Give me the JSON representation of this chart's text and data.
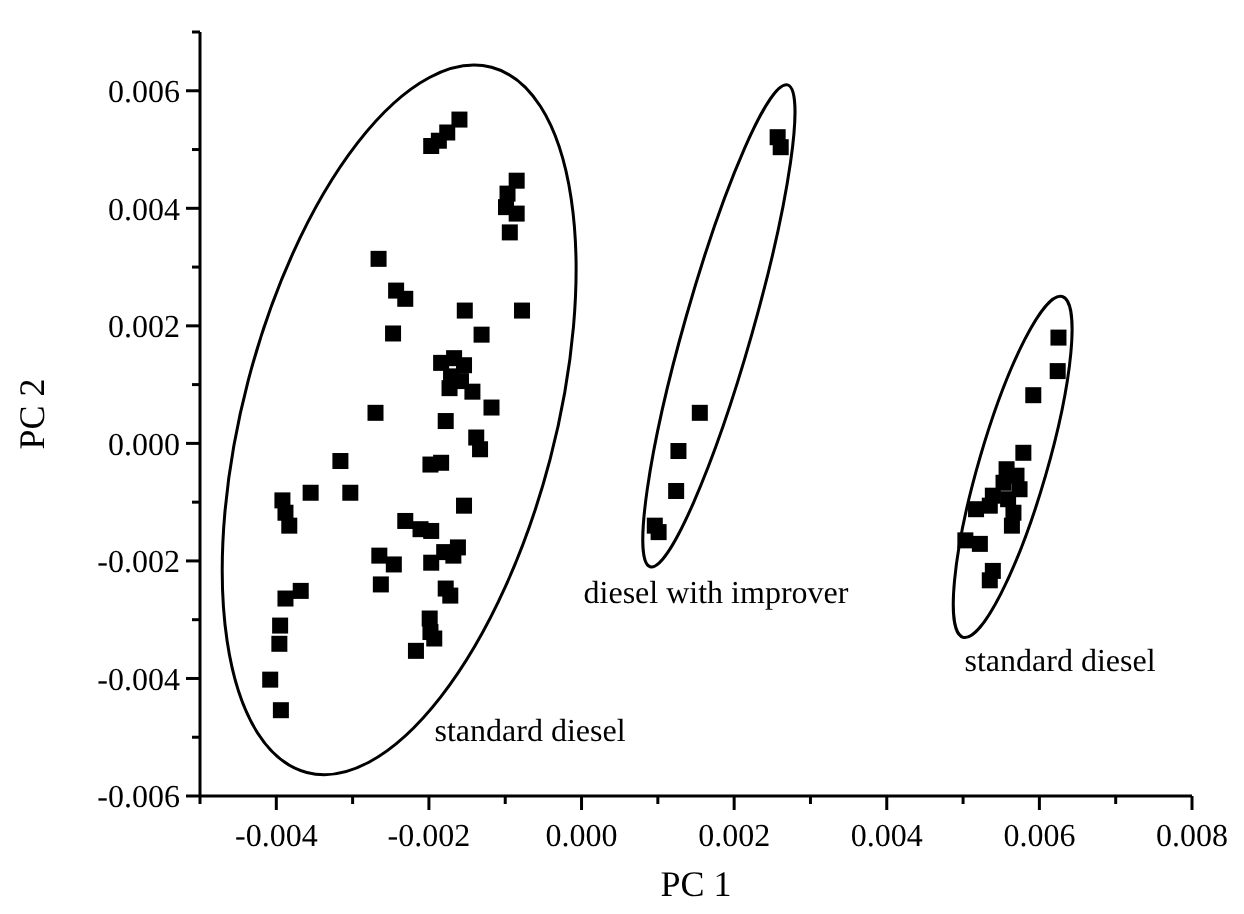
{
  "chart_data": {
    "type": "scatter",
    "xlabel": "PC 1",
    "ylabel": "PC 2",
    "marker": "square",
    "xlim": [
      -0.005,
      0.008
    ],
    "ylim": [
      -0.006,
      0.007
    ],
    "xticks": [
      {
        "value": -0.005,
        "label": null
      },
      {
        "value": -0.004,
        "label": "-0.004"
      },
      {
        "value": -0.003,
        "label": null
      },
      {
        "value": -0.002,
        "label": "-0.002"
      },
      {
        "value": -0.001,
        "label": null
      },
      {
        "value": 0,
        "label": "0.000"
      },
      {
        "value": 0.001,
        "label": null
      },
      {
        "value": 0.002,
        "label": "0.002"
      },
      {
        "value": 0.003,
        "label": null
      },
      {
        "value": 0.004,
        "label": "0.004"
      },
      {
        "value": 0.005,
        "label": null
      },
      {
        "value": 0.006,
        "label": "0.006"
      },
      {
        "value": 0.007,
        "label": null
      },
      {
        "value": 0.008,
        "label": "0.008"
      }
    ],
    "yticks": [
      {
        "value": -0.006,
        "label": "-0.006"
      },
      {
        "value": -0.005,
        "label": null
      },
      {
        "value": -0.004,
        "label": "-0.004"
      },
      {
        "value": -0.003,
        "label": null
      },
      {
        "value": -0.002,
        "label": "-0.002"
      },
      {
        "value": -0.001,
        "label": null
      },
      {
        "value": 0,
        "label": "0.000"
      },
      {
        "value": 0.001,
        "label": null
      },
      {
        "value": 0.002,
        "label": "0.002"
      },
      {
        "value": 0.003,
        "label": null
      },
      {
        "value": 0.004,
        "label": "0.004"
      },
      {
        "value": 0.005,
        "label": null
      },
      {
        "value": 0.006,
        "label": "0.006"
      },
      {
        "value": 0.007,
        "label": null
      }
    ],
    "grid": false,
    "series": [
      {
        "color": "#000000",
        "x": [
          -0.00197,
          -0.00187,
          -0.00176,
          -0.0016,
          -0.00085,
          -0.00097,
          -0.00099,
          -0.00085,
          -0.00094,
          -0.00266,
          -0.00243,
          -0.00231,
          -0.00247,
          -0.00153,
          -0.00078,
          -0.00131,
          -0.00184,
          -0.00167,
          -0.00154,
          -0.00171,
          -0.00158,
          -0.00173,
          -0.00143,
          -0.00118,
          -0.0027,
          -0.00178,
          -0.00138,
          -0.00133,
          -0.00316,
          -0.00198,
          -0.00184,
          -0.00355,
          -0.00303,
          -0.00392,
          -0.00388,
          -0.00383,
          -0.00154,
          -0.00231,
          -0.00211,
          -0.00197,
          -0.00265,
          -0.00246,
          -0.00197,
          -0.0018,
          -0.00162,
          -0.00168,
          -0.00263,
          -0.00178,
          -0.00172,
          -0.00388,
          -0.00368,
          -0.00199,
          -0.00395,
          -0.00198,
          -0.00193,
          -0.00217,
          -0.00396,
          -0.00408,
          -0.00394
        ],
        "values": [
          0.00506,
          0.00515,
          0.00529,
          0.00551,
          0.00447,
          0.00425,
          0.00402,
          0.00391,
          0.00359,
          0.00314,
          0.0026,
          0.00246,
          0.00187,
          0.00226,
          0.00226,
          0.00185,
          0.00137,
          0.00145,
          0.00133,
          0.00114,
          0.00106,
          0.00094,
          0.00088,
          0.00061,
          0.00052,
          0.00038,
          0.0001,
          -0.0001,
          -0.0003,
          -0.00036,
          -0.00033,
          -0.00084,
          -0.00084,
          -0.00097,
          -0.00118,
          -0.0014,
          -0.00106,
          -0.00132,
          -0.00146,
          -0.00149,
          -0.00191,
          -0.00206,
          -0.00203,
          -0.00185,
          -0.00177,
          -0.00191,
          -0.0024,
          -0.00247,
          -0.00259,
          -0.00264,
          -0.00251,
          -0.00298,
          -0.0031,
          -0.00321,
          -0.00332,
          -0.00353,
          -0.00341,
          -0.00402,
          -0.00454
        ]
      },
      {
        "color": "#000000",
        "x": [
          0.00257,
          0.00261,
          0.00155,
          0.00127,
          0.00124,
          0.00096,
          0.00101
        ],
        "values": [
          0.00521,
          0.00504,
          0.00052,
          -0.00013,
          -0.00081,
          -0.0014,
          -0.00151
        ]
      },
      {
        "color": "#000000",
        "x": [
          0.00625,
          0.00624,
          0.00592,
          0.00579,
          0.00557,
          0.0057,
          0.00553,
          0.00574,
          0.00539,
          0.00559,
          0.00517,
          0.00535,
          0.00566,
          0.00564,
          0.00503,
          0.00522,
          0.00539,
          0.00535
        ],
        "values": [
          0.0018,
          0.00123,
          0.00082,
          -0.00016,
          -0.00044,
          -0.00055,
          -0.00067,
          -0.00078,
          -0.00089,
          -0.00095,
          -0.00112,
          -0.00106,
          -0.00118,
          -0.0014,
          -0.00165,
          -0.00171,
          -0.00217,
          -0.00233
        ]
      }
    ],
    "annotations": [
      "standard diesel",
      "diesel with improver",
      "standard diesel"
    ]
  }
}
